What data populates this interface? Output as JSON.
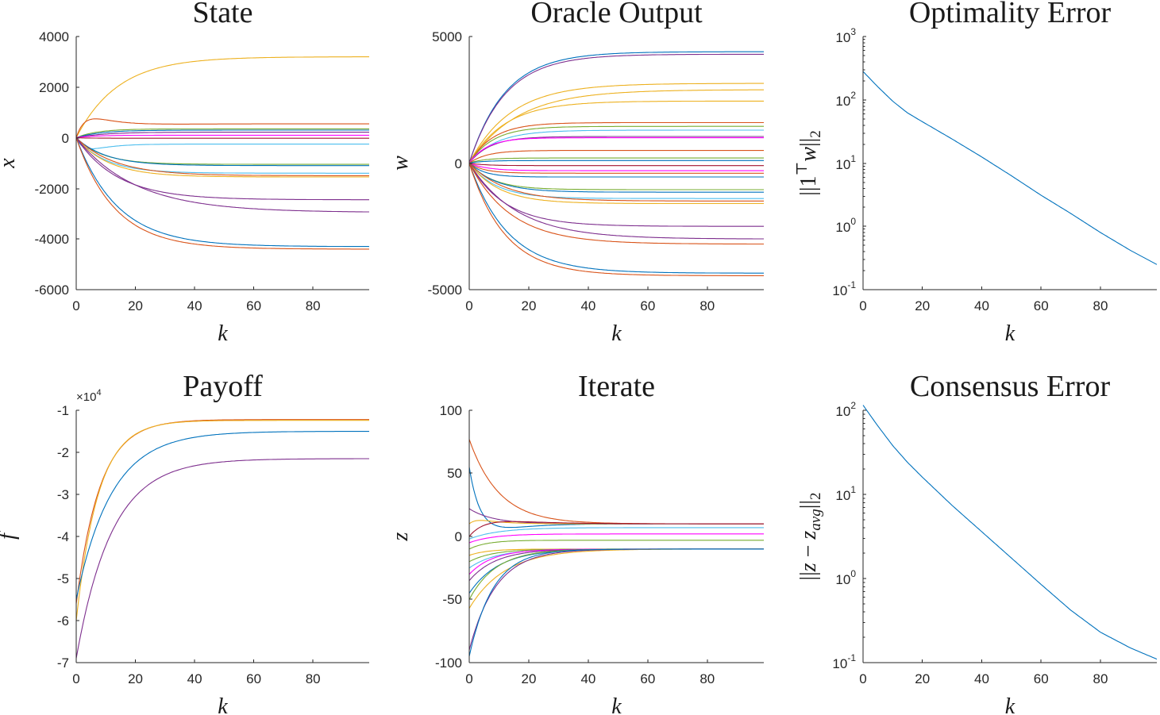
{
  "figure": {
    "panels": [
      {
        "title": "State",
        "xlabel": "k",
        "ylabel": "x",
        "yticks": [
          "4000",
          "2000",
          "0",
          "-2000",
          "-4000",
          "-6000"
        ],
        "xticks": [
          "0",
          "20",
          "40",
          "60",
          "80"
        ]
      },
      {
        "title": "Oracle Output",
        "xlabel": "k",
        "ylabel": "w",
        "yticks": [
          "5000",
          "0",
          "-5000"
        ],
        "xticks": [
          "0",
          "20",
          "40",
          "60",
          "80"
        ]
      },
      {
        "title": "Optimality Error",
        "xlabel": "k",
        "ylabel": {
          "pre": "||1",
          "sup": "⊤",
          "var": "w",
          "post": "||",
          "sub": "2"
        },
        "yticks": [
          {
            "base": "10",
            "exp": "3"
          },
          {
            "base": "10",
            "exp": "2"
          },
          {
            "base": "10",
            "exp": "1"
          },
          {
            "base": "10",
            "exp": "0"
          },
          {
            "base": "10",
            "exp": "-1"
          }
        ],
        "xticks": [
          "0",
          "20",
          "40",
          "60",
          "80"
        ]
      },
      {
        "title": "Payoff",
        "xlabel": "k",
        "ylabel": "f",
        "multiplier": {
          "base": "×10",
          "exp": "4"
        },
        "yticks": [
          "-1",
          "-2",
          "-3",
          "-4",
          "-5",
          "-6",
          "-7"
        ],
        "xticks": [
          "0",
          "20",
          "40",
          "60",
          "80"
        ]
      },
      {
        "title": "Iterate",
        "xlabel": "k",
        "ylabel": "z",
        "yticks": [
          "100",
          "50",
          "0",
          "-50",
          "-100"
        ],
        "xticks": [
          "0",
          "20",
          "40",
          "60",
          "80"
        ]
      },
      {
        "title": "Consensus Error",
        "xlabel": "k",
        "ylabel": {
          "pre": "||",
          "var": "z",
          "op": " − ",
          "var2": "z",
          "varsub": "avg",
          "post": "||",
          "sub": "2"
        },
        "yticks": [
          {
            "base": "10",
            "exp": "2"
          },
          {
            "base": "10",
            "exp": "1"
          },
          {
            "base": "10",
            "exp": "0"
          },
          {
            "base": "10",
            "exp": "-1"
          }
        ],
        "xticks": [
          "0",
          "20",
          "40",
          "60",
          "80"
        ]
      }
    ]
  },
  "colors": {
    "palette": [
      "#0072BD",
      "#D95319",
      "#EDB120",
      "#7E2F8E",
      "#77AC30",
      "#4DBEEE",
      "#A2142F",
      "#FF00FF"
    ],
    "axis": "#262626"
  },
  "chart_data": [
    {
      "id": "state",
      "type": "line",
      "title": "State",
      "xlabel": "k",
      "ylabel": "x",
      "xlim": [
        0,
        99
      ],
      "ylim": [
        -6000,
        4000
      ],
      "grid": false,
      "series": [
        {
          "color": "#EDB120",
          "start": 0,
          "final": 3200,
          "tau": 14
        },
        {
          "color": "#D95319",
          "start": 0,
          "final": 550,
          "tau": 12,
          "bump": 1600,
          "bumpTau": 5
        },
        {
          "color": "#77AC30",
          "start": 0,
          "final": 350,
          "tau": 7
        },
        {
          "color": "#0072BD",
          "start": 0,
          "final": 300,
          "tau": 8
        },
        {
          "color": "#7E2F8E",
          "start": 0,
          "final": 220,
          "tau": 9
        },
        {
          "color": "#FF00FF",
          "start": 0,
          "final": 100,
          "tau": 6
        },
        {
          "color": "#A2142F",
          "start": 0,
          "final": -20,
          "tau": 6
        },
        {
          "color": "#4DBEEE",
          "start": 0,
          "final": -250,
          "tau": 6,
          "bump": -900,
          "bumpTau": 4
        },
        {
          "color": "#77AC30",
          "start": 0,
          "final": -1050,
          "tau": 9
        },
        {
          "color": "#0072BD",
          "start": 0,
          "final": -1100,
          "tau": 10
        },
        {
          "color": "#4DBEEE",
          "start": 0,
          "final": -1400,
          "tau": 10
        },
        {
          "color": "#EDB120",
          "start": 0,
          "final": -1550,
          "tau": 11
        },
        {
          "color": "#D95319",
          "start": 0,
          "final": -1500,
          "tau": 13
        },
        {
          "color": "#7E2F8E",
          "start": 0,
          "final": -2450,
          "tau": 14
        },
        {
          "color": "#7E2F8E",
          "start": 0,
          "final": -2950,
          "tau": 20
        },
        {
          "color": "#0072BD",
          "start": 0,
          "final": -4300,
          "tau": 14
        },
        {
          "color": "#D95319",
          "start": 0,
          "final": -4400,
          "tau": 13
        }
      ]
    },
    {
      "id": "oracle",
      "type": "line",
      "title": "Oracle Output",
      "xlabel": "k",
      "ylabel": "w",
      "xlim": [
        0,
        99
      ],
      "ylim": [
        -5000,
        5000
      ],
      "grid": false,
      "series": [
        {
          "color": "#0072BD",
          "start": 0,
          "final": 4400,
          "tau": 12
        },
        {
          "color": "#7E2F8E",
          "start": 0,
          "final": 4300,
          "tau": 12
        },
        {
          "color": "#EDB120",
          "start": 0,
          "final": 3150,
          "tau": 14
        },
        {
          "color": "#EDB120",
          "start": 0,
          "final": 2900,
          "tau": 16
        },
        {
          "color": "#EDB120",
          "start": 0,
          "final": 2450,
          "tau": 12
        },
        {
          "color": "#D95319",
          "start": 0,
          "final": 1600,
          "tau": 8
        },
        {
          "color": "#77AC30",
          "start": 0,
          "final": 1450,
          "tau": 8
        },
        {
          "color": "#4DBEEE",
          "start": 0,
          "final": 1300,
          "tau": 9
        },
        {
          "color": "#7E2F8E",
          "start": 0,
          "final": 1050,
          "tau": 7
        },
        {
          "color": "#FF00FF",
          "start": 0,
          "final": 1000,
          "tau": 6
        },
        {
          "color": "#D95319",
          "start": 0,
          "final": 500,
          "tau": 6
        },
        {
          "color": "#77AC30",
          "start": 0,
          "final": 200,
          "tau": 5
        },
        {
          "color": "#0072BD",
          "start": 0,
          "final": 100,
          "tau": 5
        },
        {
          "color": "#A2142F",
          "start": 0,
          "final": -100,
          "tau": 5
        },
        {
          "color": "#FF00FF",
          "start": 0,
          "final": -300,
          "tau": 6
        },
        {
          "color": "#D95319",
          "start": 0,
          "final": -400,
          "tau": 5
        },
        {
          "color": "#0072BD",
          "start": 0,
          "final": -550,
          "tau": 5
        },
        {
          "color": "#77AC30",
          "start": 0,
          "final": -1050,
          "tau": 8
        },
        {
          "color": "#0072BD",
          "start": 0,
          "final": -1150,
          "tau": 9
        },
        {
          "color": "#4DBEEE",
          "start": 0,
          "final": -1400,
          "tau": 9
        },
        {
          "color": "#EDB120",
          "start": 0,
          "final": -1600,
          "tau": 10
        },
        {
          "color": "#D95319",
          "start": 0,
          "final": -1500,
          "tau": 12
        },
        {
          "color": "#7E2F8E",
          "start": 0,
          "final": -2500,
          "tau": 12
        },
        {
          "color": "#7E2F8E",
          "start": 0,
          "final": -3000,
          "tau": 16
        },
        {
          "color": "#D95319",
          "start": 0,
          "final": -3200,
          "tau": 14
        },
        {
          "color": "#0072BD",
          "start": 0,
          "final": -4350,
          "tau": 13
        },
        {
          "color": "#D95319",
          "start": 0,
          "final": -4450,
          "tau": 12
        }
      ]
    },
    {
      "id": "optimality",
      "type": "line",
      "title": "Optimality Error",
      "xlabel": "k",
      "ylabel": "||1⊤w||2",
      "xlim": [
        0,
        99
      ],
      "ylim": [
        0.1,
        1000
      ],
      "yscale": "log",
      "grid": false,
      "series": [
        {
          "color": "#0072BD",
          "x": [
            0,
            5,
            10,
            15,
            20,
            30,
            40,
            50,
            60,
            70,
            80,
            90,
            99
          ],
          "y": [
            280,
            160,
            95,
            62,
            45,
            24,
            12.5,
            6.3,
            3.1,
            1.6,
            0.8,
            0.42,
            0.25
          ]
        }
      ]
    },
    {
      "id": "payoff",
      "type": "line",
      "title": "Payoff",
      "xlabel": "k",
      "ylabel": "f",
      "xlim": [
        0,
        99
      ],
      "ylim": [
        -70000,
        -10000
      ],
      "multiplier": 10000,
      "grid": false,
      "series": [
        {
          "color": "#D95319",
          "start": -56000,
          "final": -12200,
          "tau": 8
        },
        {
          "color": "#EDB120",
          "start": -60000,
          "final": -12400,
          "tau": 7.5
        },
        {
          "color": "#0072BD",
          "start": -55000,
          "final": -15000,
          "tau": 12
        },
        {
          "color": "#7E2F8E",
          "start": -69000,
          "final": -21500,
          "tau": 12
        }
      ]
    },
    {
      "id": "iterate",
      "type": "line",
      "title": "Iterate",
      "xlabel": "k",
      "ylabel": "z",
      "xlim": [
        0,
        99
      ],
      "ylim": [
        -100,
        100
      ],
      "grid": false,
      "series": [
        {
          "color": "#D95319",
          "start": 77,
          "final": 10,
          "tau": 10
        },
        {
          "color": "#0072BD",
          "start": 55,
          "final": 10,
          "tau": 4,
          "bump": -20,
          "bumpTau": 6
        },
        {
          "color": "#7E2F8E",
          "start": 22,
          "final": 10,
          "tau": 8
        },
        {
          "color": "#EDB120",
          "start": 10,
          "final": 10,
          "tau": 5,
          "bump": 8,
          "bumpTau": 4
        },
        {
          "color": "#4DBEEE",
          "start": -2,
          "final": 7,
          "tau": 10
        },
        {
          "color": "#A2142F",
          "start": 0,
          "final": 10,
          "tau": 6,
          "bump": 10,
          "bumpTau": 8
        },
        {
          "color": "#FF00FF",
          "start": -5,
          "final": 2,
          "tau": 8
        },
        {
          "color": "#77AC30",
          "start": -10,
          "final": -3,
          "tau": 6
        },
        {
          "color": "#EDB120",
          "start": -15,
          "final": -10,
          "tau": 6
        },
        {
          "color": "#77AC30",
          "start": -20,
          "final": -10,
          "tau": 8
        },
        {
          "color": "#4DBEEE",
          "start": -25,
          "final": -10,
          "tau": 9
        },
        {
          "color": "#FF00FF",
          "start": -30,
          "final": -10,
          "tau": 8
        },
        {
          "color": "#7E2F8E",
          "start": -35,
          "final": -10,
          "tau": 9
        },
        {
          "color": "#0072BD",
          "start": -45,
          "final": -10,
          "tau": 10
        },
        {
          "color": "#77AC30",
          "start": -50,
          "final": -10,
          "tau": 9
        },
        {
          "color": "#EDB120",
          "start": -57,
          "final": -10,
          "tau": 12
        },
        {
          "color": "#7E2F8E",
          "start": -90,
          "final": -10,
          "tau": 9
        },
        {
          "color": "#0072BD",
          "start": -95,
          "final": -10,
          "tau": 8
        }
      ]
    },
    {
      "id": "consensus",
      "type": "line",
      "title": "Consensus Error",
      "xlabel": "k",
      "ylabel": "||z−zavg||2",
      "xlim": [
        0,
        99
      ],
      "ylim": [
        0.1,
        100
      ],
      "yscale": "log",
      "grid": false,
      "series": [
        {
          "color": "#0072BD",
          "x": [
            0,
            5,
            10,
            15,
            20,
            30,
            40,
            50,
            60,
            70,
            80,
            90,
            99
          ],
          "y": [
            115,
            65,
            38,
            24,
            16,
            7.4,
            3.6,
            1.75,
            0.85,
            0.42,
            0.23,
            0.15,
            0.11
          ]
        }
      ]
    }
  ]
}
